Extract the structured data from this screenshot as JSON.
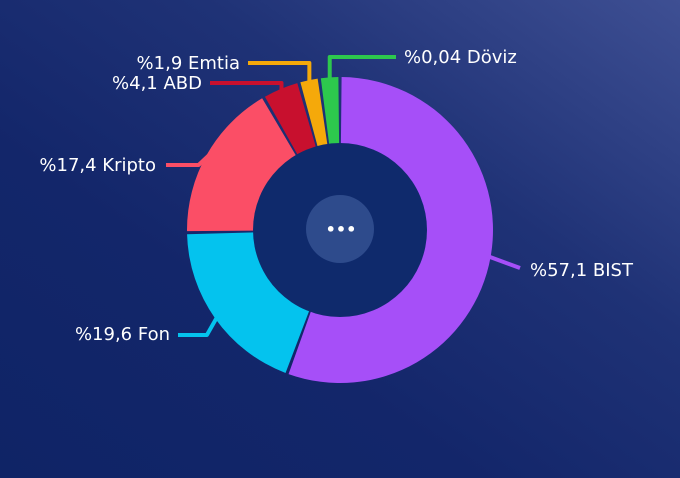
{
  "chart_data": {
    "type": "pie",
    "variant": "donut",
    "start": "top, clockwise",
    "slices": [
      {
        "name": "BIST",
        "label": "%57,1 BIST",
        "value": 57.1,
        "color": "#a64ff8"
      },
      {
        "name": "Fon",
        "label": "%19,6 Fon",
        "value": 19.6,
        "color": "#04c3ee"
      },
      {
        "name": "Kripto",
        "label": "%17,4 Kripto",
        "value": 17.4,
        "color": "#fb4e66"
      },
      {
        "name": "ABD",
        "label": "%4,1 ABD",
        "value": 4.1,
        "color": "#c8102e"
      },
      {
        "name": "Emtia",
        "label": "%1,9 Emtia",
        "value": 1.9,
        "color": "#f5a90a"
      },
      {
        "name": "Döviz",
        "label": "%0,04 Döviz",
        "value": 0.04,
        "color": "#2dc84d"
      }
    ]
  },
  "center": {
    "more_icon": "ellipsis-icon",
    "more_label": "•••"
  },
  "colors": {
    "inner_circle": "#0f2a6c",
    "more_bg": "#2e4b8c"
  }
}
